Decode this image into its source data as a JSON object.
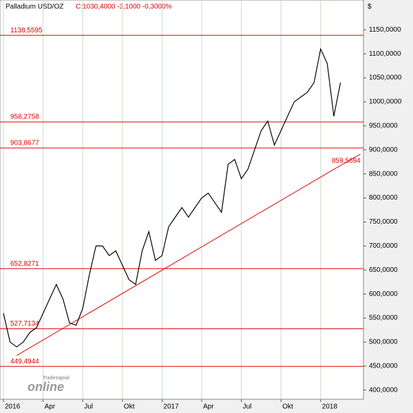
{
  "chart_data": {
    "type": "line",
    "title": "Palladium USD/OZ",
    "subtitle": "C:1030,4000 -3,1000 -0,3000%",
    "currency_label": "$",
    "logo": {
      "small": "Tradesignal",
      "big": "online"
    },
    "categories": [
      "2016",
      null,
      null,
      null,
      null,
      null,
      "Apr",
      null,
      null,
      null,
      null,
      null,
      "Jul",
      null,
      null,
      null,
      null,
      null,
      "Okt",
      null,
      null,
      null,
      null,
      null,
      "2017",
      null,
      null,
      null,
      null,
      null,
      "Apr",
      null,
      null,
      null,
      null,
      null,
      "Jul",
      null,
      null,
      null,
      null,
      null,
      "Okt",
      null,
      null,
      null,
      null,
      null,
      "2018",
      null,
      null,
      null,
      null,
      null,
      null
    ],
    "values": [
      560,
      500,
      490,
      500,
      520,
      530,
      560,
      590,
      620,
      590,
      540,
      535,
      570,
      640,
      700,
      700,
      680,
      690,
      660,
      630,
      620,
      690,
      730,
      670,
      680,
      740,
      760,
      780,
      760,
      780,
      800,
      810,
      790,
      770,
      870,
      880,
      840,
      860,
      900,
      940,
      960,
      910,
      940,
      970,
      1000,
      1010,
      1020,
      1040,
      1110,
      1080,
      970,
      1040,
      null,
      null,
      null
    ],
    "color": "#000000",
    "trend_line": {
      "color": "#e00000",
      "values": [
        null,
        null,
        472,
        null,
        null,
        null,
        null,
        null,
        null,
        null,
        null,
        null,
        null,
        null,
        null,
        null,
        null,
        null,
        null,
        null,
        null,
        null,
        null,
        null,
        null,
        null,
        null,
        null,
        null,
        null,
        null,
        null,
        null,
        null,
        null,
        null,
        null,
        null,
        null,
        null,
        null,
        null,
        null,
        null,
        null,
        null,
        null,
        null,
        null,
        null,
        859.5694,
        null,
        null,
        null,
        891
      ],
      "value_labels": [
        null,
        null,
        null,
        null,
        null,
        null,
        null,
        null,
        null,
        null,
        null,
        null,
        null,
        null,
        null,
        null,
        null,
        null,
        null,
        null,
        null,
        null,
        null,
        null,
        null,
        null,
        null,
        null,
        null,
        null,
        null,
        null,
        null,
        null,
        null,
        null,
        null,
        null,
        null,
        null,
        null,
        null,
        null,
        null,
        null,
        null,
        null,
        null,
        null,
        null,
        "859,5694",
        null,
        null,
        null,
        null
      ]
    },
    "levels": [
      {
        "value": 1138.5595,
        "label": "1138,5595"
      },
      {
        "value": 958.2758,
        "label": "958,2758"
      },
      {
        "value": 903.8677,
        "label": "903,8677"
      },
      {
        "value": 652.8271,
        "label": "652,8271"
      },
      {
        "value": 527.7134,
        "label": "527,7134"
      },
      {
        "value": 449.4944,
        "label": "449,4944"
      }
    ],
    "level_color": "#e00000",
    "ylim": [
      381,
      1212
    ],
    "yticks": [
      {
        "value": 400,
        "label": "400,0000"
      },
      {
        "value": 450,
        "label": "450,0000"
      },
      {
        "value": 500,
        "label": "500,0000"
      },
      {
        "value": 550,
        "label": "550,0000"
      },
      {
        "value": 600,
        "label": "600,0000"
      },
      {
        "value": 650,
        "label": "650,0000"
      },
      {
        "value": 700,
        "label": "700,0000"
      },
      {
        "value": 750,
        "label": "750,0000"
      },
      {
        "value": 800,
        "label": "800,0000"
      },
      {
        "value": 850,
        "label": "850,0000"
      },
      {
        "value": 900,
        "label": "900,0000"
      },
      {
        "value": 950,
        "label": "950,0000"
      },
      {
        "value": 1000,
        "label": "1000,0000"
      },
      {
        "value": 1050,
        "label": "1050,0000"
      },
      {
        "value": 1100,
        "label": "1100,0000"
      },
      {
        "value": 1150,
        "label": "1150,0000"
      }
    ],
    "grid": "vertical"
  }
}
